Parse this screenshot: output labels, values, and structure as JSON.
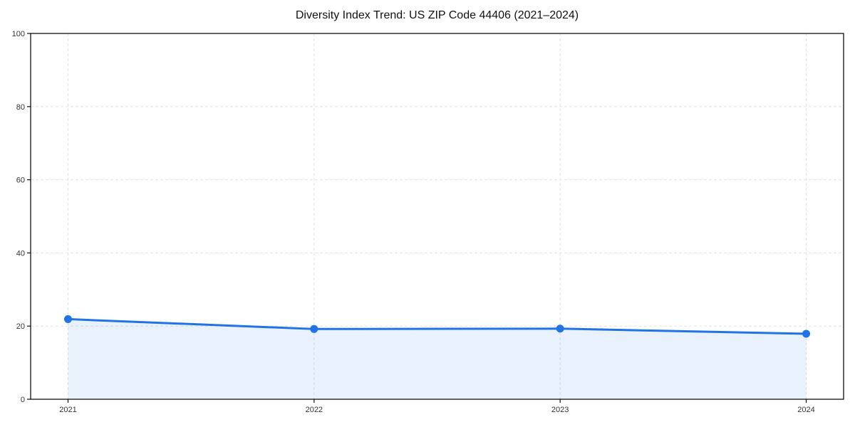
{
  "chart_data": {
    "type": "line",
    "title": "Diversity Index Trend: US ZIP Code 44406 (2021–2024)",
    "x": [
      2021,
      2022,
      2023,
      2024
    ],
    "xticks": [
      "2021",
      "2022",
      "2023",
      "2024"
    ],
    "series": [
      {
        "name": "Diversity Index",
        "values": [
          21.9,
          19.2,
          19.3,
          17.9
        ]
      }
    ],
    "xlabel": "",
    "ylabel": "",
    "ylim": [
      0,
      100
    ],
    "yticks": [
      0,
      20,
      40,
      60,
      80,
      100
    ],
    "grid": true,
    "grid_style": "dashed",
    "legend": "none",
    "area_fill": true,
    "marker": "circle"
  },
  "colors": {
    "line": "#2273e3",
    "marker": "#2273e3",
    "area_fill": "#2273e3",
    "area_fill_opacity": 0.1,
    "gridline": "#e3e3e3",
    "frame": "#111111",
    "tick_label": "#333333",
    "title": "#111111",
    "background": "#ffffff"
  }
}
